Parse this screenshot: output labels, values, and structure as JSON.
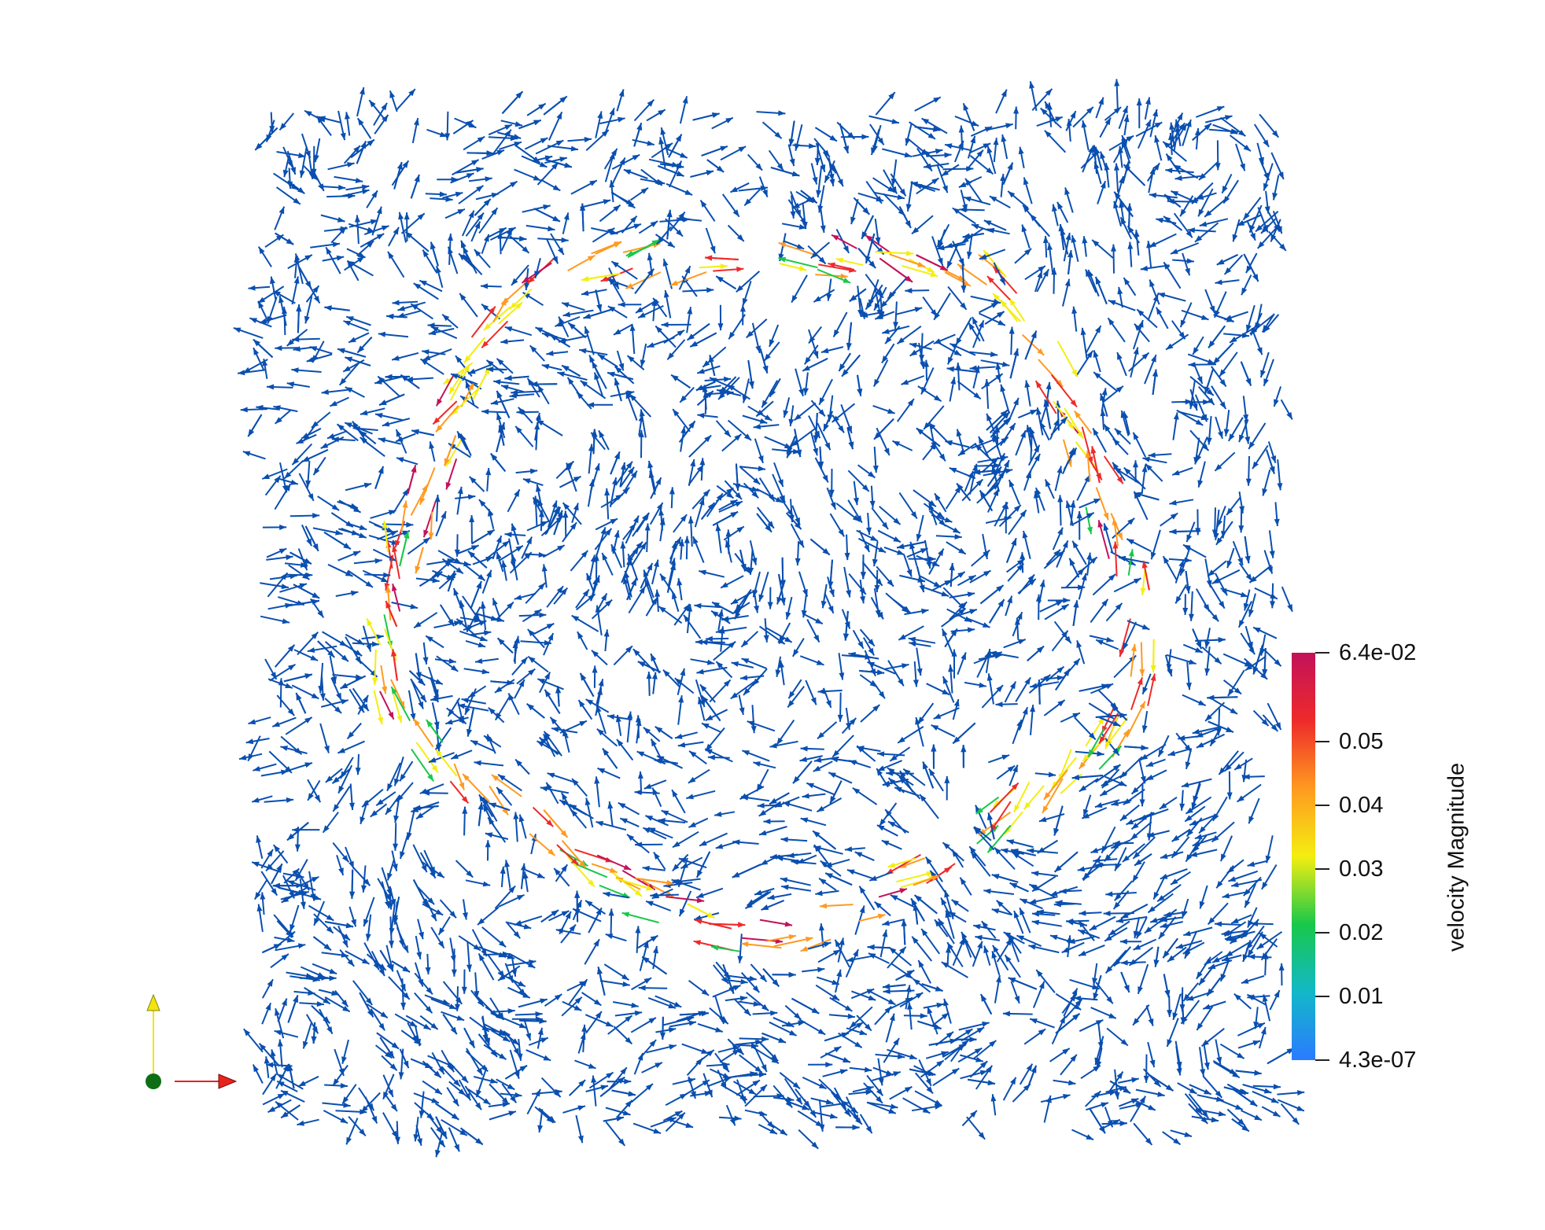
{
  "view": {
    "background": "#ffffff",
    "glyph_color_low": "#0a4fb0"
  },
  "colorbar": {
    "title": "velocity Magnitude",
    "range": [
      4.3e-07,
      0.064
    ],
    "colors": [
      "#2b7bff",
      "#12b8c8",
      "#18c84a",
      "#f4ee10",
      "#ff9a20",
      "#ee2a2a",
      "#c2125a"
    ],
    "ticks": [
      {
        "label": "6.4e-02",
        "value": 0.064
      },
      {
        "label": "0.05",
        "value": 0.05
      },
      {
        "label": "0.04",
        "value": 0.04
      },
      {
        "label": "0.03",
        "value": 0.03
      },
      {
        "label": "0.02",
        "value": 0.02
      },
      {
        "label": "0.01",
        "value": 0.01
      },
      {
        "label": "4.3e-07",
        "value": 4.3e-07
      }
    ]
  },
  "axes": {
    "x_color": "#e8231c",
    "y_color": "#f2e40f",
    "origin_color": "#0e6e14"
  }
}
